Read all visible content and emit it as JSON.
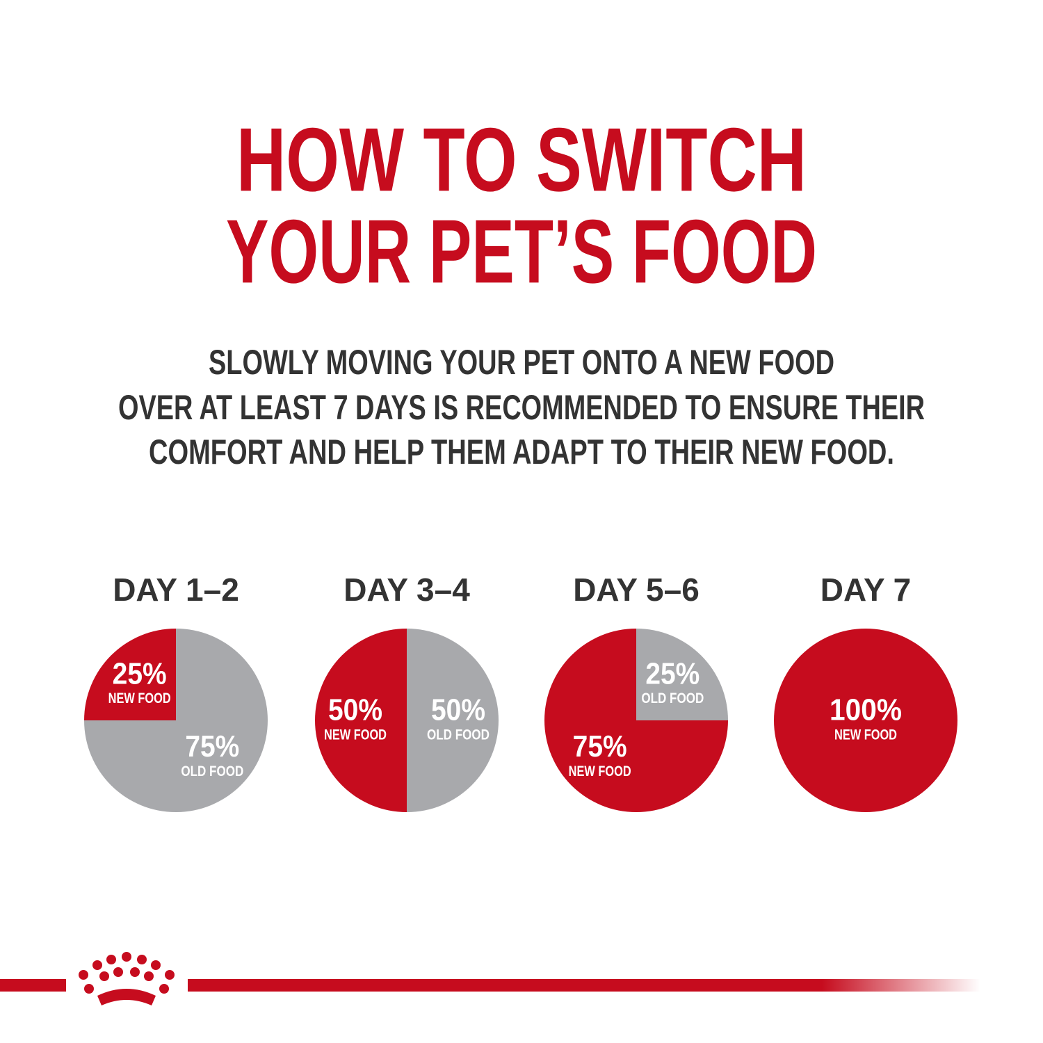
{
  "header": {
    "title_lines": [
      "HOW TO SWITCH",
      "YOUR PET’S FOOD"
    ],
    "subtitle_lines": [
      "SLOWLY MOVING YOUR PET ONTO A NEW FOOD",
      "OVER AT LEAST 7 DAYS IS RECOMMENDED TO ENSURE THEIR",
      "COMFORT AND HELP THEM ADAPT TO THEIR NEW FOOD."
    ]
  },
  "chart_data": [
    {
      "type": "pie",
      "title": "DAY 1–2",
      "categories": [
        "NEW FOOD",
        "OLD FOOD"
      ],
      "values": [
        25,
        75
      ],
      "value_labels": [
        "25%",
        "75%"
      ],
      "colors": [
        "#c60c1e",
        "#a8a9ac"
      ]
    },
    {
      "type": "pie",
      "title": "DAY 3–4",
      "categories": [
        "NEW FOOD",
        "OLD FOOD"
      ],
      "values": [
        50,
        50
      ],
      "value_labels": [
        "50%",
        "50%"
      ],
      "colors": [
        "#c60c1e",
        "#a8a9ac"
      ]
    },
    {
      "type": "pie",
      "title": "DAY 5–6",
      "categories": [
        "NEW FOOD",
        "OLD FOOD"
      ],
      "values": [
        75,
        25
      ],
      "value_labels": [
        "75%",
        "25%"
      ],
      "colors": [
        "#c60c1e",
        "#a8a9ac"
      ]
    },
    {
      "type": "pie",
      "title": "DAY 7",
      "categories": [
        "NEW FOOD"
      ],
      "values": [
        100
      ],
      "value_labels": [
        "100%"
      ],
      "colors": [
        "#c60c1e"
      ]
    }
  ]
}
